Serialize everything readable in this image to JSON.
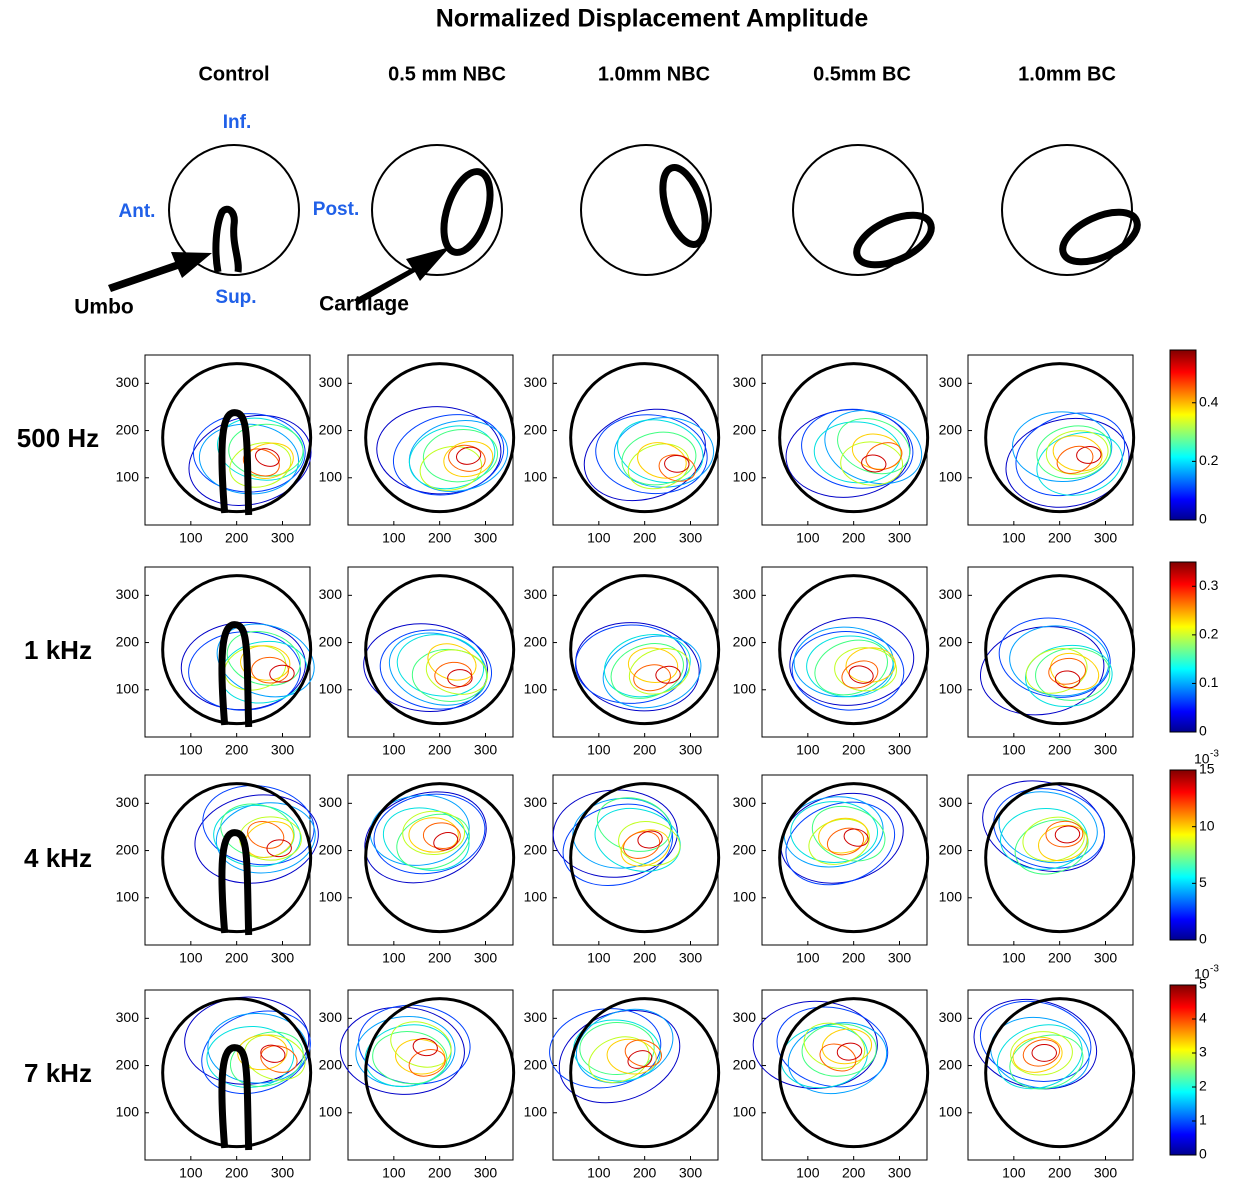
{
  "title": "Normalized Displacement Amplitude",
  "columns": [
    "Control",
    "0.5 mm NBC",
    "1.0mm NBC",
    "0.5mm BC",
    "1.0mm BC"
  ],
  "schematic_labels": {
    "inf": "Inf.",
    "ant": "Ant.",
    "post": "Post.",
    "sup": "Sup.",
    "umbo": "Umbo",
    "cartilage": "Cartilage"
  },
  "axis": {
    "lim": [
      0,
      360
    ],
    "xticks": [
      100,
      200,
      300
    ],
    "yticks": [
      100,
      200,
      300
    ]
  },
  "rows": [
    {
      "label": "500 Hz",
      "colorbar": {
        "lim": [
          0,
          0.58
        ],
        "ticks": [
          0,
          0.2,
          0.4
        ]
      }
    },
    {
      "label": "1 kHz",
      "colorbar": {
        "lim": [
          0,
          0.35
        ],
        "ticks": [
          0,
          0.1,
          0.2,
          0.3
        ]
      }
    },
    {
      "label": "4 kHz",
      "colorbar": {
        "lim": [
          0,
          15
        ],
        "ticks": [
          0,
          5,
          10,
          15
        ],
        "multiplier": {
          "base": "10",
          "exponent": "-3"
        }
      }
    },
    {
      "label": "7 kHz",
      "colorbar": {
        "lim": [
          0,
          5
        ],
        "ticks": [
          0,
          1,
          2,
          3,
          4,
          5
        ],
        "multiplier": {
          "base": "10",
          "exponent": "-3"
        }
      }
    }
  ]
}
